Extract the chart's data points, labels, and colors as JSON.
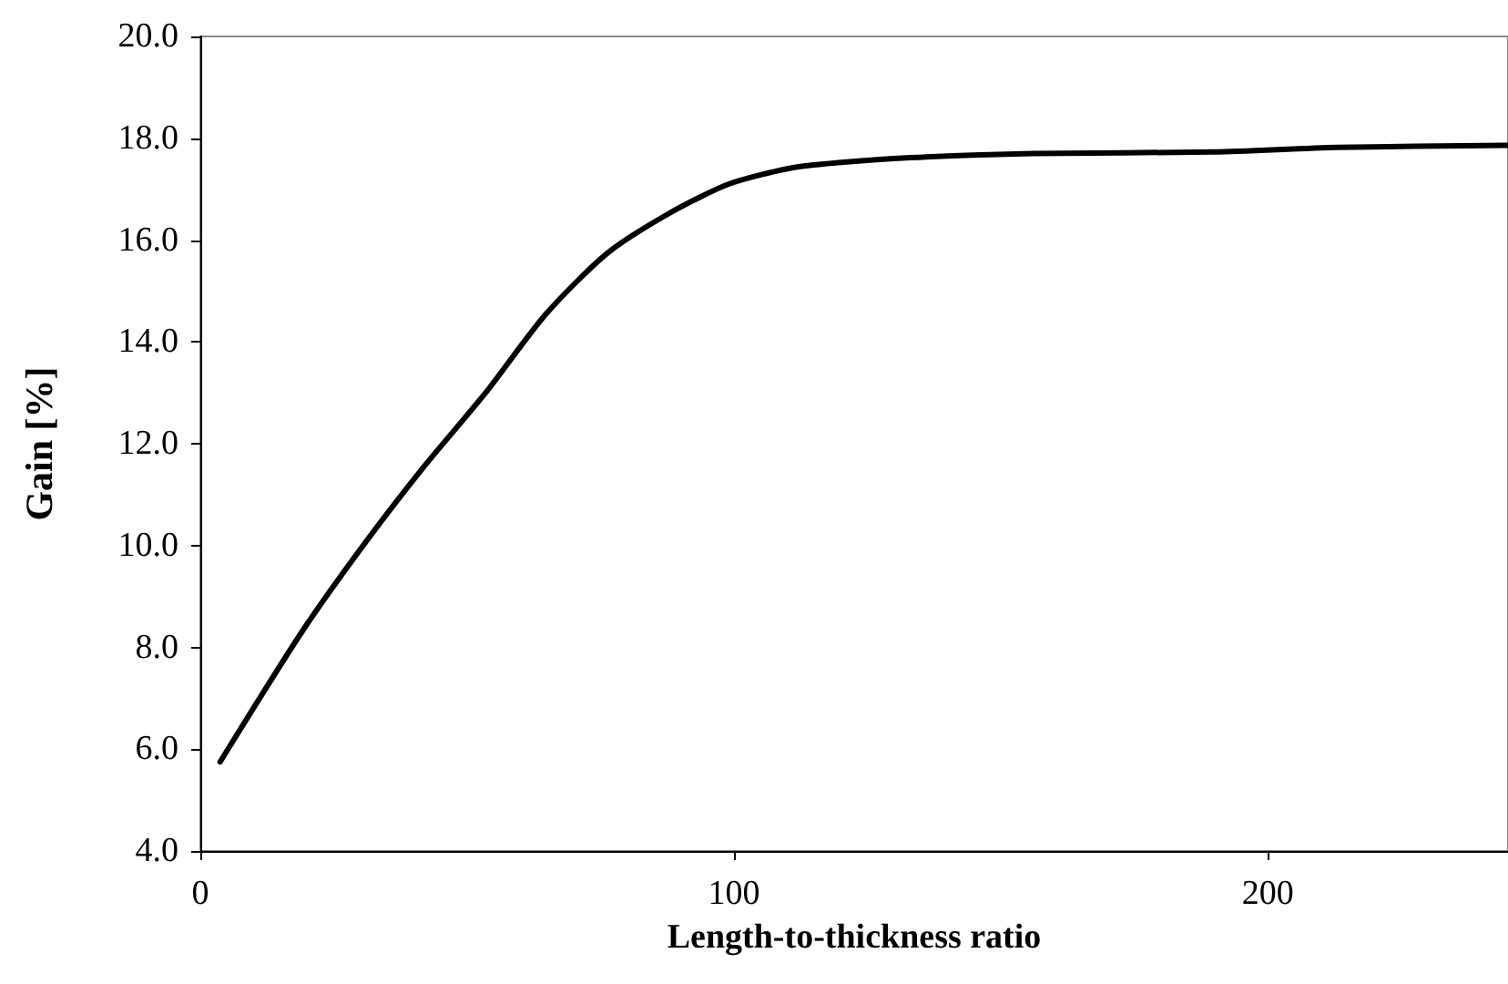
{
  "chart_data": {
    "type": "line",
    "xlabel": "Length-to-thickness ratio",
    "ylabel": "Gain [%]",
    "x": [
      3.7,
      19,
      30.5,
      41.9,
      53.3,
      64.7,
      76.1,
      87.6,
      99,
      110.4,
      119.5,
      133,
      156,
      190,
      213,
      245
    ],
    "series": [
      {
        "color": "#000000",
        "values": [
          5.75,
          8.3,
          10.0,
          11.55,
          12.98,
          14.54,
          15.73,
          16.51,
          17.1,
          17.41,
          17.52,
          17.62,
          17.7,
          17.73,
          17.82,
          17.86
        ]
      }
    ],
    "xlim": [
      0,
      245
    ],
    "xticks": [
      0,
      100,
      200
    ],
    "ylim": [
      4,
      20
    ],
    "yticks": [
      {
        "value": 4,
        "label": "4.0"
      },
      {
        "value": 6,
        "label": "6.0"
      },
      {
        "value": 8,
        "label": "8.0"
      },
      {
        "value": 10,
        "label": "10.0"
      },
      {
        "value": 12,
        "label": "12.0"
      },
      {
        "value": 14,
        "label": "14.0"
      },
      {
        "value": 16,
        "label": "16.0"
      },
      {
        "value": 18,
        "label": "18.0"
      },
      {
        "value": 20,
        "label": "20.0"
      }
    ],
    "grid": false,
    "marker": "none",
    "line_style": "solid"
  }
}
